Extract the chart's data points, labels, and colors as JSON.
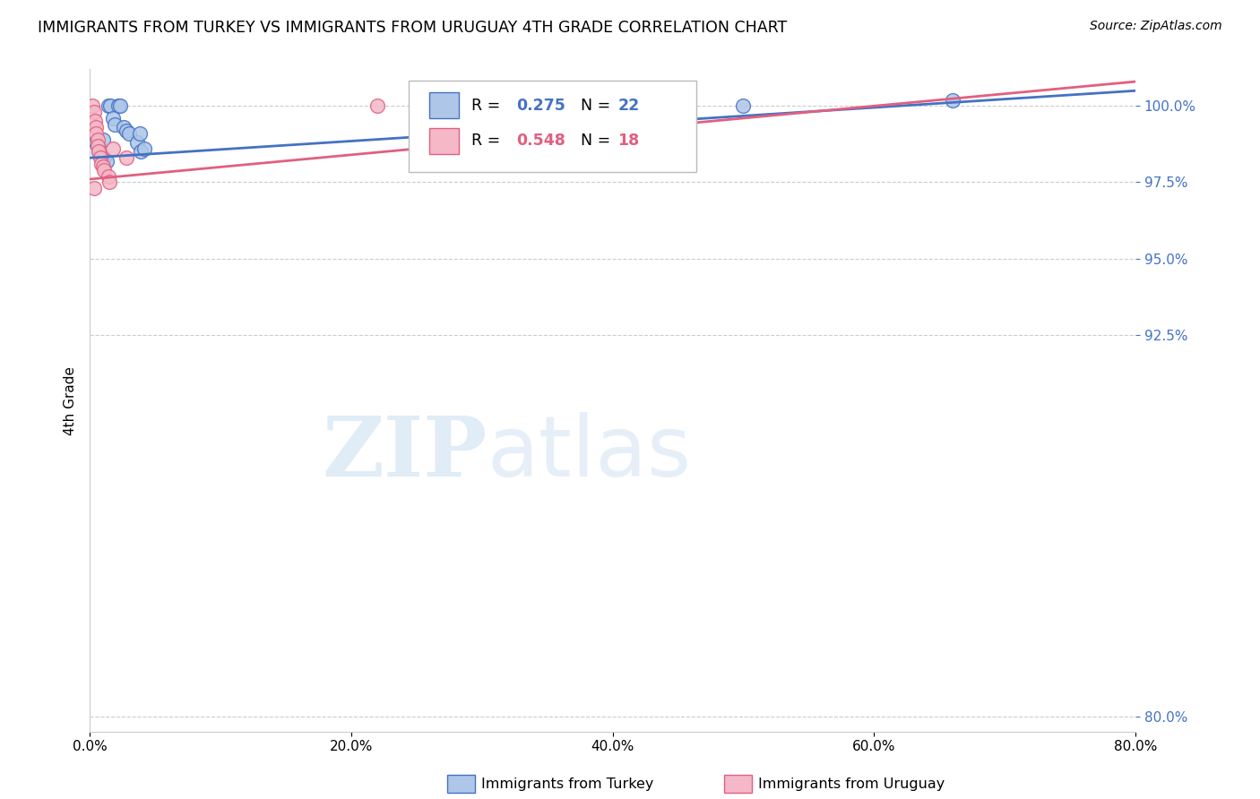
{
  "title": "IMMIGRANTS FROM TURKEY VS IMMIGRANTS FROM URUGUAY 4TH GRADE CORRELATION CHART",
  "source": "Source: ZipAtlas.com",
  "ylabel_label": "4th Grade",
  "xlim": [
    0.0,
    80.0
  ],
  "ylim": [
    79.5,
    101.2
  ],
  "y_tick_positions": [
    80.0,
    92.5,
    95.0,
    97.5,
    100.0
  ],
  "x_tick_positions": [
    0.0,
    20.0,
    40.0,
    60.0,
    80.0
  ],
  "color_turkey": "#aec6e8",
  "color_turkey_line": "#4472c4",
  "color_uruguay": "#f4b8c8",
  "color_uruguay_line": "#e06080",
  "turkey_x": [
    1.4,
    1.6,
    2.2,
    2.3,
    1.8,
    1.9,
    2.6,
    2.8,
    3.0,
    1.0,
    0.5,
    0.6,
    0.7,
    0.8,
    1.1,
    1.3,
    3.6,
    3.8,
    3.9,
    4.2,
    50.0,
    66.0
  ],
  "turkey_y": [
    100.0,
    100.0,
    100.0,
    100.0,
    99.6,
    99.4,
    99.3,
    99.2,
    99.1,
    98.9,
    98.8,
    98.7,
    98.5,
    98.4,
    98.3,
    98.2,
    98.8,
    99.1,
    98.5,
    98.6,
    100.0,
    100.2
  ],
  "uruguay_x": [
    0.2,
    0.3,
    0.4,
    0.5,
    0.5,
    0.6,
    0.6,
    0.7,
    0.8,
    0.9,
    1.0,
    1.1,
    1.4,
    1.5,
    1.8,
    22.0,
    2.8,
    0.3
  ],
  "uruguay_y": [
    100.0,
    99.8,
    99.5,
    99.3,
    99.1,
    98.9,
    98.7,
    98.5,
    98.3,
    98.1,
    98.0,
    97.9,
    97.7,
    97.5,
    98.6,
    100.0,
    98.3,
    97.3
  ],
  "trend_turkey_x0": 0.0,
  "trend_turkey_y0": 98.3,
  "trend_turkey_x1": 80.0,
  "trend_turkey_y1": 100.5,
  "trend_uruguay_x0": 0.0,
  "trend_uruguay_y0": 97.6,
  "trend_uruguay_x1": 80.0,
  "trend_uruguay_y1": 100.8,
  "background_color": "#ffffff",
  "grid_color": "#cccccc",
  "watermark_zip": "ZIP",
  "watermark_atlas": "atlas",
  "watermark_color_zip": "#c8ddf0",
  "watermark_color_atlas": "#c8ddf0"
}
